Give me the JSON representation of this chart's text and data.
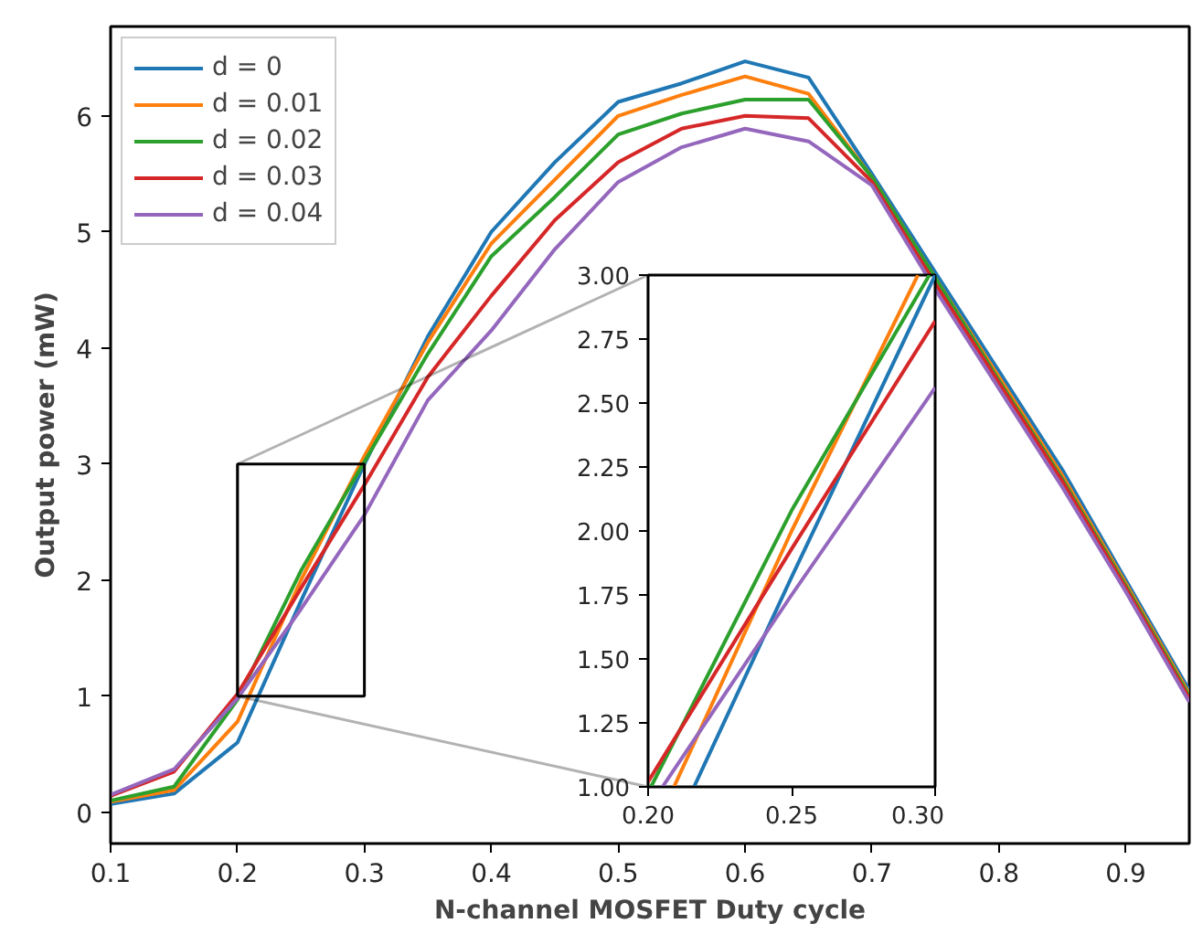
{
  "chart_data": [
    {
      "type": "line",
      "xlabel": "N-channel MOSFET Duty cycle",
      "ylabel": "Output power (mW)",
      "x": [
        0.1,
        0.15,
        0.2,
        0.25,
        0.3,
        0.35,
        0.4,
        0.45,
        0.5,
        0.55,
        0.6,
        0.65,
        0.7,
        0.75,
        0.8,
        0.85,
        0.9,
        0.95
      ],
      "xlim": [
        0.1,
        0.95
      ],
      "ylim": [
        -0.27,
        6.77
      ],
      "xticks": [
        0.1,
        0.2,
        0.3,
        0.4,
        0.5,
        0.6,
        0.7,
        0.8,
        0.9
      ],
      "yticks": [
        0,
        1,
        2,
        3,
        4,
        5,
        6
      ],
      "legend": "top left",
      "grid": false,
      "series": [
        {
          "name": "d = 0",
          "color": "#1f77b4",
          "values": [
            0.07,
            0.16,
            0.6,
            1.82,
            3.0,
            4.1,
            5.0,
            5.6,
            6.12,
            6.28,
            6.47,
            6.33,
            5.5,
            4.65,
            3.8,
            2.95,
            2.0,
            1.05
          ]
        },
        {
          "name": "d = 0.01",
          "color": "#ff7f0e",
          "values": [
            0.09,
            0.19,
            0.78,
            2.0,
            3.07,
            4.05,
            4.9,
            5.45,
            6.0,
            6.18,
            6.34,
            6.19,
            5.47,
            4.6,
            3.75,
            2.9,
            1.97,
            1.02
          ]
        },
        {
          "name": "d = 0.02",
          "color": "#2ca02c",
          "values": [
            0.1,
            0.22,
            0.97,
            2.08,
            3.02,
            3.95,
            4.79,
            5.3,
            5.84,
            6.02,
            6.14,
            6.14,
            5.47,
            4.6,
            3.72,
            2.87,
            1.95,
            1.0
          ]
        },
        {
          "name": "d = 0.03",
          "color": "#d62728",
          "values": [
            0.14,
            0.35,
            1.02,
            1.93,
            2.82,
            3.75,
            4.45,
            5.1,
            5.6,
            5.89,
            6.0,
            5.98,
            5.43,
            4.55,
            3.7,
            2.85,
            1.93,
            0.98
          ]
        },
        {
          "name": "d = 0.04",
          "color": "#9467bd",
          "values": [
            0.15,
            0.37,
            0.98,
            1.75,
            2.56,
            3.55,
            4.15,
            4.85,
            5.43,
            5.73,
            5.89,
            5.78,
            5.4,
            4.5,
            3.65,
            2.8,
            1.9,
            0.95
          ]
        }
      ]
    },
    {
      "type": "line",
      "xlim": [
        0.2,
        0.3
      ],
      "ylim": [
        1.0,
        3.0
      ],
      "xticks": [
        {
          "value": 0.2,
          "label": "0.20"
        },
        {
          "value": 0.25,
          "label": "0.25"
        },
        {
          "value": 0.3,
          "label": "0.30"
        }
      ],
      "yticks": [
        {
          "value": 1.0,
          "label": "1.00"
        },
        {
          "value": 1.25,
          "label": "1.25"
        },
        {
          "value": 1.5,
          "label": "1.50"
        },
        {
          "value": 1.75,
          "label": "1.75"
        },
        {
          "value": 2.0,
          "label": "2.00"
        },
        {
          "value": 2.25,
          "label": "2.25"
        },
        {
          "value": 2.5,
          "label": "2.50"
        },
        {
          "value": 2.75,
          "label": "2.75"
        },
        {
          "value": 3.0,
          "label": "3.00"
        }
      ],
      "grid": false,
      "series": [
        {
          "color": "#1f77b4",
          "x": [
            0.216,
            0.25,
            0.3
          ],
          "values": [
            1.0,
            1.82,
            3.0
          ]
        },
        {
          "color": "#ff7f0e",
          "x": [
            0.209,
            0.25,
            0.294
          ],
          "values": [
            1.0,
            2.0,
            3.0
          ]
        },
        {
          "color": "#2ca02c",
          "x": [
            0.201,
            0.25,
            0.298
          ],
          "values": [
            1.0,
            2.08,
            3.0
          ]
        },
        {
          "color": "#d62728",
          "x": [
            0.2,
            0.25,
            0.3
          ],
          "values": [
            1.02,
            1.93,
            2.82
          ]
        },
        {
          "color": "#9467bd",
          "x": [
            0.205,
            0.25,
            0.3
          ],
          "values": [
            1.0,
            1.75,
            2.56
          ]
        }
      ]
    }
  ]
}
